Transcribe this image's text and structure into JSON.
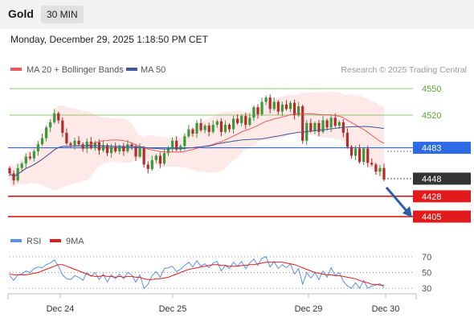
{
  "header": {
    "symbol": "Gold",
    "timeframe": "30 MIN",
    "datetime": "Monday, December 29, 2025 1:18:50 PM CET"
  },
  "colors": {
    "up": "#3a9a3a",
    "down": "#b52a2a",
    "ma20": "#e85a5a",
    "ma50": "#3d5a99",
    "bollinger_fill": "#fde2e2",
    "support": "#e11b1b",
    "pivot": "#2d6ae6",
    "resistance": "#8fc970",
    "last_price": "#333333",
    "rsi": "#5b8ff0",
    "rsi_ma": "#e11b1b"
  },
  "chart_data": [
    {
      "type": "candlestick",
      "legend": [
        "MA 20 + Bollinger Bands",
        "MA 50"
      ],
      "watermark": "Research © 2025 Trading Central",
      "ylim": [
        4395,
        4562
      ],
      "x_ticks": [
        "Dec 24",
        "Dec 25",
        "Dec 29",
        "Dec 30"
      ],
      "levels": [
        {
          "label": "4550",
          "value": 4550,
          "kind": "resistance"
        },
        {
          "label": "4520",
          "value": 4520,
          "kind": "resistance"
        },
        {
          "label": "4483",
          "value": 4483,
          "kind": "pivot"
        },
        {
          "label": "4448",
          "value": 4448,
          "kind": "last"
        },
        {
          "label": "4428",
          "value": 4428,
          "kind": "support"
        },
        {
          "label": "4405",
          "value": 4405,
          "kind": "support"
        }
      ],
      "close": [
        4454,
        4446,
        4460,
        4465,
        4473,
        4471,
        4479,
        4487,
        4494,
        4506,
        4512,
        4522,
        4514,
        4500,
        4488,
        4486,
        4491,
        4487,
        4482,
        4490,
        4483,
        4489,
        4480,
        4486,
        4477,
        4484,
        4479,
        4485,
        4479,
        4487,
        4484,
        4473,
        4483,
        4464,
        4459,
        4469,
        4474,
        4465,
        4477,
        4483,
        4491,
        4481,
        4485,
        4496,
        4504,
        4499,
        4511,
        4503,
        4508,
        4501,
        4509,
        4513,
        4501,
        4509,
        4504,
        4516,
        4511,
        4519,
        4509,
        4517,
        4529,
        4521,
        4535,
        4540,
        4527,
        4535,
        4524,
        4532,
        4527,
        4534,
        4520,
        4530,
        4491,
        4511,
        4502,
        4511,
        4501,
        4514,
        4506,
        4517,
        4508,
        4512,
        4500,
        4484,
        4474,
        4482,
        4467,
        4482,
        4466,
        4464,
        4456,
        4460,
        4447
      ],
      "trend_arrow": {
        "from": 4438,
        "to": 4405
      }
    },
    {
      "type": "line",
      "legend": [
        "RSI",
        "9MA"
      ],
      "ylim": [
        25,
        75
      ],
      "y_ticks": [
        70,
        50,
        30
      ],
      "series": [
        {
          "name": "RSI",
          "values": [
            46,
            40,
            47,
            48,
            52,
            50,
            55,
            57,
            56,
            60,
            62,
            66,
            58,
            47,
            42,
            41,
            46,
            44,
            40,
            50,
            45,
            50,
            41,
            48,
            38,
            47,
            42,
            48,
            42,
            50,
            47,
            38,
            47,
            30,
            35,
            46,
            51,
            44,
            55,
            56,
            58,
            51,
            54,
            59,
            63,
            57,
            65,
            58,
            61,
            56,
            62,
            64,
            52,
            59,
            55,
            63,
            58,
            64,
            55,
            62,
            67,
            59,
            68,
            70,
            57,
            64,
            55,
            60,
            56,
            61,
            48,
            55,
            35,
            50,
            43,
            50,
            41,
            52,
            44,
            56,
            46,
            50,
            39,
            33,
            30,
            37,
            30,
            40,
            30,
            33,
            34,
            36,
            31
          ]
        },
        {
          "name": "9MA",
          "values": [
            48,
            47,
            47,
            47,
            47,
            48,
            49,
            50,
            52,
            54,
            56,
            58,
            60,
            60,
            58,
            56,
            54,
            52,
            50,
            48,
            46,
            45,
            45,
            46,
            45,
            45,
            44,
            45,
            44,
            45,
            45,
            44,
            44,
            42,
            41,
            41,
            42,
            42,
            43,
            44,
            46,
            48,
            50,
            52,
            54,
            55,
            56,
            57,
            58,
            59,
            60,
            60,
            59,
            59,
            58,
            58,
            58,
            59,
            59,
            60,
            60,
            61,
            62,
            63,
            63,
            63,
            63,
            63,
            62,
            61,
            60,
            58,
            56,
            54,
            52,
            50,
            49,
            48,
            47,
            47,
            46,
            46,
            45,
            44,
            43,
            42,
            40,
            38,
            37,
            35,
            35,
            34,
            34
          ]
        }
      ]
    }
  ]
}
